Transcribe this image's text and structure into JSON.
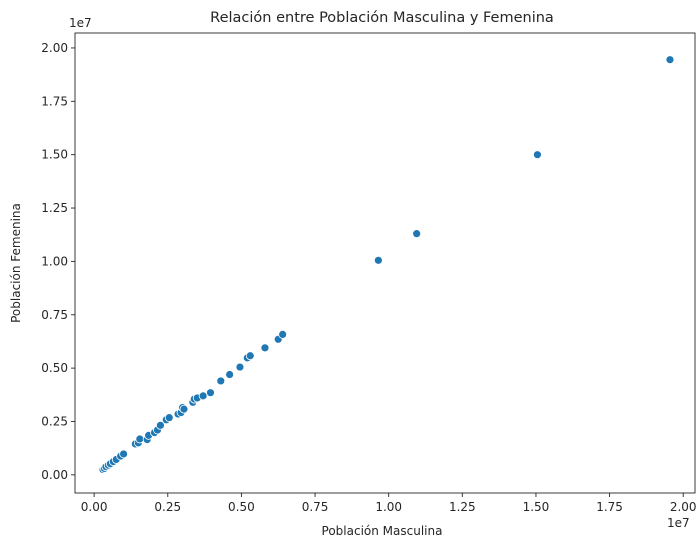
{
  "chart_data": {
    "type": "scatter",
    "title": "Relación entre Población Masculina y Femenina",
    "xlabel": "Población Masculina",
    "ylabel": "Población Femenina",
    "x_offset_label": "1e7",
    "y_offset_label": "1e7",
    "xlim": [
      -0.065,
      2.04
    ],
    "ylim": [
      -0.085,
      2.07
    ],
    "xticks": [
      0.0,
      0.25,
      0.5,
      0.75,
      1.0,
      1.25,
      1.5,
      1.75,
      2.0
    ],
    "xtick_labels": [
      "0.00",
      "0.25",
      "0.50",
      "0.75",
      "1.00",
      "1.25",
      "1.50",
      "1.75",
      "2.00"
    ],
    "yticks": [
      0.0,
      0.25,
      0.5,
      0.75,
      1.0,
      1.25,
      1.5,
      1.75,
      2.0
    ],
    "ytick_labels": [
      "0.00",
      "0.25",
      "0.50",
      "0.75",
      "1.00",
      "1.25",
      "1.50",
      "1.75",
      "2.00"
    ],
    "grid": false,
    "marker_color": "#1f77b4",
    "points": [
      {
        "x": 0.03,
        "y": 0.025
      },
      {
        "x": 0.035,
        "y": 0.03
      },
      {
        "x": 0.04,
        "y": 0.038
      },
      {
        "x": 0.048,
        "y": 0.045
      },
      {
        "x": 0.055,
        "y": 0.052
      },
      {
        "x": 0.065,
        "y": 0.062
      },
      {
        "x": 0.075,
        "y": 0.072
      },
      {
        "x": 0.09,
        "y": 0.088
      },
      {
        "x": 0.1,
        "y": 0.098
      },
      {
        "x": 0.14,
        "y": 0.145
      },
      {
        "x": 0.15,
        "y": 0.15
      },
      {
        "x": 0.155,
        "y": 0.168
      },
      {
        "x": 0.18,
        "y": 0.165
      },
      {
        "x": 0.185,
        "y": 0.185
      },
      {
        "x": 0.205,
        "y": 0.198
      },
      {
        "x": 0.215,
        "y": 0.21
      },
      {
        "x": 0.225,
        "y": 0.232
      },
      {
        "x": 0.245,
        "y": 0.258
      },
      {
        "x": 0.255,
        "y": 0.268
      },
      {
        "x": 0.285,
        "y": 0.285
      },
      {
        "x": 0.295,
        "y": 0.292
      },
      {
        "x": 0.3,
        "y": 0.315
      },
      {
        "x": 0.305,
        "y": 0.308
      },
      {
        "x": 0.335,
        "y": 0.34
      },
      {
        "x": 0.34,
        "y": 0.355
      },
      {
        "x": 0.35,
        "y": 0.36
      },
      {
        "x": 0.37,
        "y": 0.37
      },
      {
        "x": 0.395,
        "y": 0.385
      },
      {
        "x": 0.43,
        "y": 0.44
      },
      {
        "x": 0.46,
        "y": 0.47
      },
      {
        "x": 0.495,
        "y": 0.505
      },
      {
        "x": 0.52,
        "y": 0.548
      },
      {
        "x": 0.53,
        "y": 0.558
      },
      {
        "x": 0.58,
        "y": 0.595
      },
      {
        "x": 0.625,
        "y": 0.635
      },
      {
        "x": 0.64,
        "y": 0.658
      },
      {
        "x": 0.965,
        "y": 1.005
      },
      {
        "x": 1.095,
        "y": 1.13
      },
      {
        "x": 1.505,
        "y": 1.5
      },
      {
        "x": 1.955,
        "y": 1.945
      }
    ]
  }
}
